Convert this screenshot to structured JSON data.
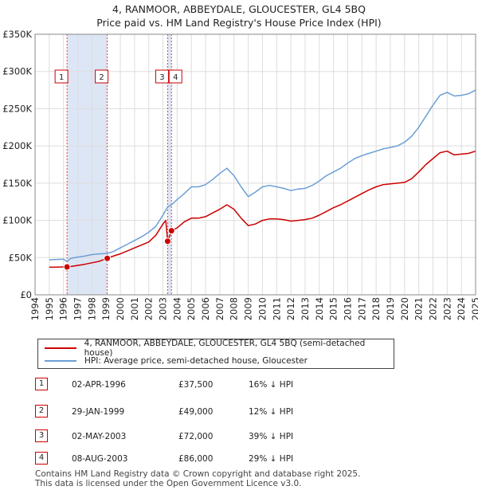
{
  "header": {
    "title": "4, RANMOOR, ABBEYDALE, GLOUCESTER, GL4 5BQ",
    "subtitle": "Price paid vs. HM Land Registry's House Price Index (HPI)"
  },
  "legend": {
    "property_label": "4, RANMOOR, ABBEYDALE, GLOUCESTER, GL4 5BQ (semi-detached house)",
    "hpi_label": "HPI: Average price, semi-detached house, Gloucester"
  },
  "sales": [
    {
      "num": "1",
      "date": "02-APR-1996",
      "price": "£37,500",
      "hpi": "16% ↓ HPI"
    },
    {
      "num": "2",
      "date": "29-JAN-1999",
      "price": "£49,000",
      "hpi": "12% ↓ HPI"
    },
    {
      "num": "3",
      "date": "02-MAY-2003",
      "price": "£72,000",
      "hpi": "39% ↓ HPI"
    },
    {
      "num": "4",
      "date": "08-AUG-2003",
      "price": "£86,000",
      "hpi": "29% ↓ HPI"
    }
  ],
  "footer": {
    "line1": "Contains HM Land Registry data © Crown copyright and database right 2025.",
    "line2": "This data is licensed under the Open Government Licence v3.0."
  },
  "colors": {
    "property": "#cc0000",
    "hpi": "#6b9fd6",
    "marker_line": "#dd4444",
    "shade": "#dde6f5",
    "grid": "#dddddd"
  },
  "chart_data": {
    "type": "line",
    "title": "4, RANMOOR, ABBEYDALE, GLOUCESTER, GL4 5BQ",
    "subtitle": "Price paid vs. HM Land Registry's House Price Index (HPI)",
    "xlabel": "",
    "ylabel": "",
    "xlim": [
      1994,
      2025
    ],
    "ylim": [
      0,
      350000
    ],
    "x_ticks": [
      "1994",
      "1995",
      "1996",
      "1997",
      "1998",
      "1999",
      "2000",
      "2001",
      "2002",
      "2003",
      "2004",
      "2005",
      "2006",
      "2007",
      "2008",
      "2009",
      "2010",
      "2011",
      "2012",
      "2013",
      "2014",
      "2015",
      "2016",
      "2017",
      "2018",
      "2019",
      "2020",
      "2021",
      "2022",
      "2023",
      "2024",
      "2025"
    ],
    "y_ticks": [
      {
        "value": 0,
        "label": "£0"
      },
      {
        "value": 50000,
        "label": "£50K"
      },
      {
        "value": 100000,
        "label": "£100K"
      },
      {
        "value": 150000,
        "label": "£150K"
      },
      {
        "value": 200000,
        "label": "£200K"
      },
      {
        "value": 250000,
        "label": "£250K"
      },
      {
        "value": 300000,
        "label": "£300K"
      },
      {
        "value": 350000,
        "label": "£350K"
      }
    ],
    "grid": true,
    "shaded_ranges": [
      [
        1996.25,
        1999.08
      ],
      [
        2003.33,
        2003.6
      ]
    ],
    "series": [
      {
        "name": "HPI: Average price, semi-detached house, Gloucester",
        "x": [
          1995.0,
          1995.5,
          1996.0,
          1996.25,
          1996.5,
          1997.0,
          1997.5,
          1998.0,
          1998.5,
          1999.08,
          1999.5,
          2000.0,
          2000.5,
          2001.0,
          2001.5,
          2002.0,
          2002.5,
          2003.0,
          2003.33,
          2003.6,
          2004.0,
          2004.5,
          2005.0,
          2005.5,
          2006.0,
          2006.5,
          2007.0,
          2007.5,
          2008.0,
          2008.5,
          2009.0,
          2009.5,
          2010.0,
          2010.5,
          2011.0,
          2011.5,
          2012.0,
          2012.5,
          2013.0,
          2013.5,
          2014.0,
          2014.5,
          2015.0,
          2015.5,
          2016.0,
          2016.5,
          2017.0,
          2017.5,
          2018.0,
          2018.5,
          2019.0,
          2019.5,
          2020.0,
          2020.5,
          2021.0,
          2021.5,
          2022.0,
          2022.5,
          2023.0,
          2023.5,
          2024.0,
          2024.5,
          2025.0
        ],
        "y": [
          47000,
          47500,
          48000,
          44600,
          49000,
          50500,
          52000,
          54000,
          55000,
          55700,
          58000,
          63000,
          68000,
          73000,
          78000,
          84000,
          92000,
          107000,
          118000,
          121000,
          128000,
          136000,
          145000,
          145000,
          148000,
          155000,
          163000,
          170000,
          160000,
          145000,
          132000,
          138000,
          145000,
          147000,
          145000,
          143000,
          140000,
          142000,
          143000,
          147000,
          153000,
          160000,
          165000,
          170000,
          177000,
          183000,
          187000,
          190000,
          193000,
          196000,
          198000,
          200000,
          205000,
          213000,
          225000,
          240000,
          255000,
          268000,
          272000,
          267000,
          268000,
          270000,
          275000
        ]
      },
      {
        "name": "4, RANMOOR, ABBEYDALE, GLOUCESTER, GL4 5BQ (semi-detached house)",
        "x": [
          1995.0,
          1995.5,
          1996.0,
          1996.25,
          1996.5,
          1997.0,
          1997.5,
          1998.0,
          1998.5,
          1999.08,
          1999.5,
          2000.0,
          2000.5,
          2001.0,
          2001.5,
          2002.0,
          2002.5,
          2003.0,
          2003.2,
          2003.33,
          2003.6,
          2004.0,
          2004.5,
          2005.0,
          2005.5,
          2006.0,
          2006.5,
          2007.0,
          2007.5,
          2008.0,
          2008.5,
          2009.0,
          2009.5,
          2010.0,
          2010.5,
          2011.0,
          2011.5,
          2012.0,
          2012.5,
          2013.0,
          2013.5,
          2014.0,
          2014.5,
          2015.0,
          2015.5,
          2016.0,
          2016.5,
          2017.0,
          2017.5,
          2018.0,
          2018.5,
          2019.0,
          2019.5,
          2020.0,
          2020.5,
          2021.0,
          2021.5,
          2022.0,
          2022.5,
          2023.0,
          2023.5,
          2024.0,
          2024.5,
          2025.0
        ],
        "y": [
          37000,
          37300,
          37500,
          37500,
          38000,
          39500,
          41000,
          43000,
          45000,
          49000,
          52000,
          55000,
          59000,
          63000,
          67000,
          71000,
          80000,
          95000,
          100000,
          72000,
          86000,
          90000,
          98000,
          103000,
          103000,
          105000,
          110000,
          115000,
          121000,
          115000,
          103000,
          93000,
          95000,
          100000,
          102000,
          102000,
          101000,
          99000,
          100000,
          101000,
          103000,
          107000,
          112000,
          117000,
          121000,
          126000,
          131000,
          136000,
          141000,
          145000,
          148000,
          149000,
          150000,
          151000,
          156000,
          165000,
          175000,
          183000,
          191000,
          193000,
          188000,
          189000,
          190000,
          193000
        ]
      }
    ],
    "sales_points": [
      {
        "label": "1",
        "x": 1996.25,
        "y": 37500
      },
      {
        "label": "2",
        "x": 1999.08,
        "y": 49000
      },
      {
        "label": "3",
        "x": 2003.33,
        "y": 72000
      },
      {
        "label": "4",
        "x": 2003.6,
        "y": 86000
      }
    ]
  }
}
